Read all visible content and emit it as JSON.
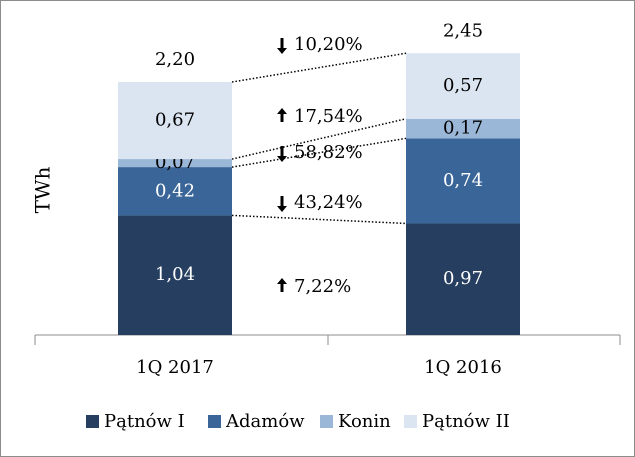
{
  "chart_data": {
    "type": "stacked_bar",
    "y_label": "TWh",
    "categories": [
      "1Q 2017",
      "1Q 2016"
    ],
    "series": [
      {
        "name": "Pątnów I",
        "color": "#263f60",
        "label_color": "#ffffff",
        "values": [
          1.04,
          0.97
        ],
        "value_labels": [
          "1,04",
          "0,97"
        ]
      },
      {
        "name": "Adamów",
        "color": "#3a6598",
        "label_color": "#ffffff",
        "values": [
          0.42,
          0.74
        ],
        "value_labels": [
          "0,42",
          "0,74"
        ]
      },
      {
        "name": "Konin",
        "color": "#9bb7d8",
        "label_color": "#000000",
        "values": [
          0.07,
          0.17
        ],
        "value_labels": [
          "0,07",
          "0,17"
        ]
      },
      {
        "name": "Pątnów II",
        "color": "#dbe4f1",
        "label_color": "#000000",
        "values": [
          0.67,
          0.57
        ],
        "value_labels": [
          "0,67",
          "0,57"
        ]
      }
    ],
    "totals": [
      2.2,
      2.45
    ],
    "total_labels": [
      "2,20",
      "2,45"
    ],
    "annotations": [
      {
        "text": "7,22%",
        "direction": "up"
      },
      {
        "text": "43,24%",
        "direction": "down"
      },
      {
        "text": "58,82%",
        "direction": "down"
      },
      {
        "text": "17,54%",
        "direction": "up"
      },
      {
        "text": "10,20%",
        "direction": "down"
      }
    ],
    "ylim": [
      0,
      2.8
    ],
    "legend": "bottom"
  }
}
